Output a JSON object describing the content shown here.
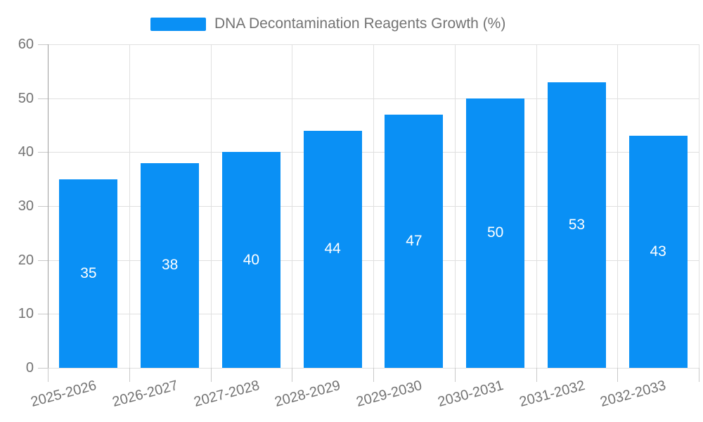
{
  "chart_data": {
    "type": "bar",
    "title": "DNA Decontamination Reagents Growth (%)",
    "legend": [
      "DNA Decontamination Reagents Growth (%)"
    ],
    "legend_position": "top-center",
    "categories": [
      "2025-2026",
      "2026-2027",
      "2027-2028",
      "2028-2029",
      "2029-2030",
      "2030-2031",
      "2031-2032",
      "2032-2033"
    ],
    "values": [
      35,
      38,
      40,
      44,
      47,
      50,
      53,
      43
    ],
    "xlabel": "",
    "ylabel": "",
    "ylim": [
      0,
      60
    ],
    "ytick_step": 10,
    "yticks": [
      0,
      10,
      20,
      30,
      40,
      50,
      60
    ],
    "grid": true,
    "x_label_rotation_deg": 15,
    "bar_label_position": "inside-middle",
    "colors": {
      "bar": "#0a90f5",
      "bar_label": "#ffffff",
      "axis_text": "#737373",
      "legend_text": "#737373",
      "gridline": "#e0e0e0",
      "axis_line": "#9e9e9e",
      "tick": "#c9c9c9",
      "background": "#ffffff"
    }
  }
}
